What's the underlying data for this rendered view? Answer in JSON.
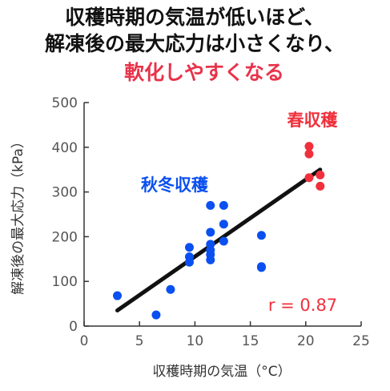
{
  "title_lines": [
    "収穫時期の気温が低いほど、",
    "解凍後の最大応力は小さくなり、",
    "軟化しやすくなる"
  ],
  "colors": {
    "title": "#111111",
    "title_highlight": "#e8334a",
    "autumn_winter": "#0a50f0",
    "spring": "#f0303c",
    "trendline": "#111111",
    "axis": "#333333"
  },
  "chart_data": {
    "type": "scatter",
    "xlabel": "収穫時期の気温（°C）",
    "ylabel": "解凍後の最大応力（kPa）",
    "xlim": [
      0,
      25
    ],
    "ylim": [
      0,
      500
    ],
    "xticks": [
      "0",
      "5",
      "10",
      "15",
      "20",
      "25"
    ],
    "yticks": [
      "0",
      "100",
      "200",
      "300",
      "400",
      "500"
    ],
    "grid": false,
    "series": [
      {
        "name": "秋冬収穫",
        "color": "#0a50f0",
        "points": [
          [
            3.0,
            68
          ],
          [
            6.5,
            25
          ],
          [
            7.8,
            82
          ],
          [
            9.5,
            176
          ],
          [
            9.5,
            155
          ],
          [
            9.5,
            143
          ],
          [
            11.4,
            270
          ],
          [
            11.4,
            210
          ],
          [
            11.4,
            183
          ],
          [
            11.4,
            170
          ],
          [
            11.4,
            160
          ],
          [
            11.4,
            148
          ],
          [
            12.6,
            270
          ],
          [
            12.6,
            228
          ],
          [
            12.6,
            190
          ],
          [
            16.0,
            203
          ],
          [
            16.0,
            133
          ],
          [
            16.0,
            131
          ]
        ]
      },
      {
        "name": "春収穫",
        "color": "#f0303c",
        "points": [
          [
            20.3,
            402
          ],
          [
            20.3,
            385
          ],
          [
            20.3,
            332
          ],
          [
            21.3,
            338
          ],
          [
            21.3,
            313
          ]
        ]
      }
    ],
    "trendline": {
      "x1": 3.0,
      "y1": 35,
      "x2": 21.3,
      "y2": 350
    },
    "annotations": {
      "r_value": "r = 0.87"
    }
  }
}
